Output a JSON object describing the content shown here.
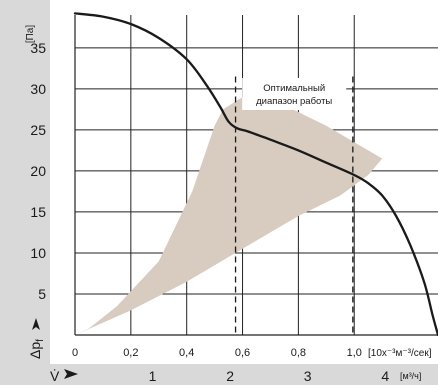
{
  "chart_data": {
    "type": "line",
    "title": "",
    "ylabel": "[Па]",
    "y_symbol": "Δp",
    "y_symbol_sub": "f",
    "x_symbol": "V̇",
    "xlabel_primary": "[10x⁻³м⁻³/сек]",
    "xlabel_secondary": "[м³/ч]",
    "xlim": [
      0,
      1.3
    ],
    "ylim": [
      0,
      39
    ],
    "primary_ticks": [
      {
        "v": 0,
        "label": "0"
      },
      {
        "v": 0.2,
        "label": "0,2"
      },
      {
        "v": 0.4,
        "label": "0,4"
      },
      {
        "v": 0.6,
        "label": "0,6"
      },
      {
        "v": 0.8,
        "label": "0,8"
      },
      {
        "v": 1.0,
        "label": "1,0"
      }
    ],
    "secondary_ticks": [
      {
        "v": 1,
        "label": "1"
      },
      {
        "v": 2,
        "label": "2"
      },
      {
        "v": 3,
        "label": "3"
      },
      {
        "v": 4,
        "label": "4"
      }
    ],
    "m3h_per_primary": 3.6,
    "y_ticks": [
      5,
      10,
      15,
      20,
      25,
      30,
      35
    ],
    "grid": true,
    "series": [
      {
        "values": [
          [
            0,
            39.2
          ],
          [
            0.1,
            38.8
          ],
          [
            0.2,
            37.9
          ],
          [
            0.3,
            36.2
          ],
          [
            0.4,
            33.6
          ],
          [
            0.47,
            30.5
          ],
          [
            0.52,
            27.8
          ],
          [
            0.55,
            26.0
          ],
          [
            0.58,
            25.2
          ],
          [
            0.62,
            24.8
          ],
          [
            0.7,
            23.8
          ],
          [
            0.8,
            22.5
          ],
          [
            0.9,
            21.0
          ],
          [
            1.0,
            19.5
          ],
          [
            1.05,
            18.5
          ],
          [
            1.1,
            17.0
          ],
          [
            1.15,
            14.5
          ],
          [
            1.2,
            11.0
          ],
          [
            1.25,
            6.5
          ],
          [
            1.28,
            2.5
          ],
          [
            1.3,
            0
          ]
        ]
      }
    ],
    "optimal_region": {
      "label_line1": "Оптимальный",
      "label_line2": "диапазон работы",
      "v_lines": [
        0.575,
        0.995
      ],
      "polygon": [
        [
          0,
          0
        ],
        [
          0.2,
          3.0
        ],
        [
          0.4,
          6.5
        ],
        [
          0.6,
          10.5
        ],
        [
          0.8,
          14.5
        ],
        [
          0.95,
          17.0
        ],
        [
          1.05,
          19.5
        ],
        [
          1.1,
          21.5
        ],
        [
          1.05,
          22.5
        ],
        [
          0.9,
          25.5
        ],
        [
          0.75,
          28.0
        ],
        [
          0.6,
          29.0
        ],
        [
          0.53,
          27.5
        ],
        [
          0.5,
          25.5
        ],
        [
          0.42,
          17.5
        ],
        [
          0.3,
          9.0
        ],
        [
          0.15,
          3.5
        ],
        [
          0.05,
          0.8
        ]
      ]
    },
    "colors": {
      "curve": "#1a1a1a",
      "grid": "#222222",
      "region": "#d8cbbf",
      "axis_band": "#d9d9d9",
      "text": "#1a1a1a"
    }
  }
}
